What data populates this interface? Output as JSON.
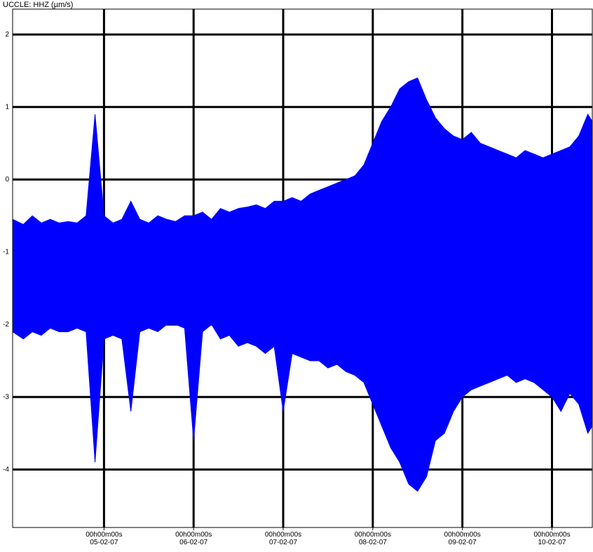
{
  "chart_data": {
    "type": "band",
    "title": "UCCLE: HHZ (µm/s)",
    "x": [
      3.98,
      4.1,
      4.2,
      4.3,
      4.4,
      4.5,
      4.6,
      4.7,
      4.8,
      4.9,
      5.0,
      5.1,
      5.2,
      5.3,
      5.4,
      5.5,
      5.6,
      5.7,
      5.8,
      5.9,
      6.0,
      6.1,
      6.2,
      6.3,
      6.4,
      6.5,
      6.6,
      6.7,
      6.8,
      6.9,
      7.0,
      7.1,
      7.2,
      7.3,
      7.4,
      7.5,
      7.6,
      7.7,
      7.8,
      7.9,
      8.0,
      8.1,
      8.2,
      8.3,
      8.4,
      8.5,
      8.6,
      8.7,
      8.8,
      8.9,
      9.0,
      9.1,
      9.2,
      9.3,
      9.4,
      9.5,
      9.6,
      9.7,
      9.8,
      9.9,
      10.0,
      10.1,
      10.2,
      10.3,
      10.4,
      10.45
    ],
    "upper": [
      -0.55,
      -0.62,
      -0.5,
      -0.6,
      -0.55,
      -0.6,
      -0.58,
      -0.6,
      -0.5,
      0.9,
      -0.5,
      -0.6,
      -0.55,
      -0.3,
      -0.55,
      -0.6,
      -0.5,
      -0.55,
      -0.58,
      -0.5,
      -0.5,
      -0.45,
      -0.55,
      -0.4,
      -0.45,
      -0.4,
      -0.38,
      -0.35,
      -0.4,
      -0.3,
      -0.3,
      -0.25,
      -0.3,
      -0.2,
      -0.15,
      -0.1,
      -0.05,
      0.0,
      0.05,
      0.2,
      0.5,
      0.8,
      1.0,
      1.25,
      1.35,
      1.4,
      1.1,
      0.85,
      0.7,
      0.6,
      0.55,
      0.65,
      0.5,
      0.45,
      0.4,
      0.35,
      0.3,
      0.4,
      0.35,
      0.3,
      0.35,
      0.4,
      0.45,
      0.6,
      0.9,
      0.8
    ],
    "lower": [
      -2.1,
      -2.2,
      -2.1,
      -2.15,
      -2.05,
      -2.1,
      -2.1,
      -2.05,
      -2.1,
      -3.9,
      -2.2,
      -2.15,
      -2.2,
      -3.2,
      -2.1,
      -2.05,
      -2.1,
      -2.0,
      -2.0,
      -2.05,
      -3.6,
      -2.1,
      -2.0,
      -2.2,
      -2.15,
      -2.3,
      -2.25,
      -2.3,
      -2.4,
      -2.3,
      -3.2,
      -2.4,
      -2.45,
      -2.5,
      -2.5,
      -2.6,
      -2.55,
      -2.65,
      -2.7,
      -2.8,
      -3.1,
      -3.4,
      -3.7,
      -3.9,
      -4.2,
      -4.3,
      -4.1,
      -3.6,
      -3.5,
      -3.2,
      -3.0,
      -2.9,
      -2.85,
      -2.8,
      -2.75,
      -2.7,
      -2.8,
      -2.75,
      -2.8,
      -2.9,
      -3.0,
      -3.2,
      -2.95,
      -3.1,
      -3.5,
      -3.4
    ],
    "color": "#0000ff",
    "xlim": [
      3.98,
      10.45
    ],
    "xticks": [
      {
        "value": 5,
        "label": "05-02-07"
      },
      {
        "value": 6,
        "label": "06-02-07"
      },
      {
        "value": 7,
        "label": "07-02-07"
      },
      {
        "value": 8,
        "label": "08-02-07"
      },
      {
        "value": 9,
        "label": "09-02-07"
      },
      {
        "value": 10,
        "label": "10-02-07"
      }
    ],
    "xtick_time_label": "00h00m00s",
    "ylim": [
      -4.8,
      2.35
    ],
    "yticks": [
      2,
      1,
      0,
      -1,
      -2,
      -3,
      -4
    ],
    "grid": true,
    "grid_color": "#000000"
  }
}
